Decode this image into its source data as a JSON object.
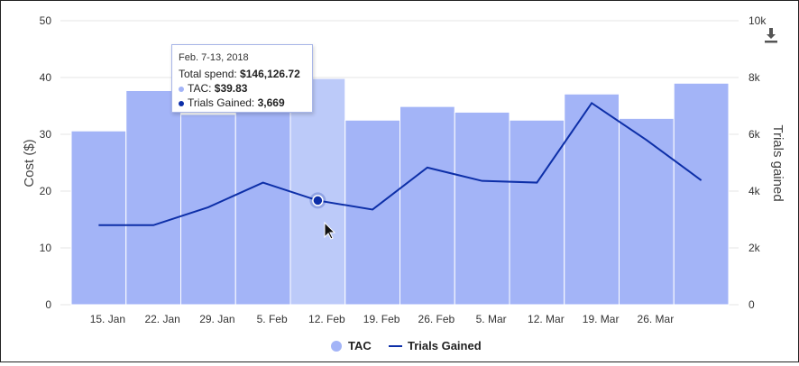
{
  "chart_data": {
    "type": "bar",
    "categories": [
      "15. Jan",
      "22. Jan",
      "29. Jan",
      "5. Feb",
      "12. Feb",
      "19. Feb",
      "26. Feb",
      "5. Mar",
      "12. Mar",
      "19. Mar",
      "26. Mar",
      ""
    ],
    "series": [
      {
        "name": "TAC",
        "type": "bar",
        "axis": "left",
        "color": "#a3b4f7",
        "highlight_color": "#bccaf9",
        "values": [
          30.6,
          37.7,
          33.5,
          34.5,
          39.83,
          32.5,
          34.9,
          33.9,
          32.5,
          37.1,
          32.8,
          39.0
        ]
      },
      {
        "name": "Trials Gained",
        "type": "line",
        "axis": "right",
        "color": "#0d2fa8",
        "values": [
          2800,
          2800,
          3430,
          4300,
          3669,
          3350,
          4830,
          4360,
          4300,
          7100,
          5800,
          4380
        ]
      }
    ],
    "x_tick_labels": [
      "15. Jan",
      "22. Jan",
      "29. Jan",
      "5. Feb",
      "12. Feb",
      "19. Feb",
      "26. Feb",
      "5. Mar",
      "12. Mar",
      "19. Mar",
      "26. Mar"
    ],
    "ylabel": "Cost ($)",
    "ylim": [
      0,
      50
    ],
    "yticks": [
      "0",
      "10",
      "20",
      "30",
      "40",
      "50"
    ],
    "y2label": "Trials gained",
    "y2lim": [
      0,
      10000
    ],
    "y2ticks": [
      "0",
      "2k",
      "4k",
      "6k",
      "8k",
      "10k"
    ],
    "highlight_index": 4,
    "grid": "horizontal",
    "legend_position": "bottom-center",
    "legend": [
      {
        "label": "TAC",
        "marker": "circle",
        "color": "#a3b4f7"
      },
      {
        "label": "Trials Gained",
        "marker": "line",
        "color": "#0d2fa8"
      }
    ]
  },
  "tooltip": {
    "date": "Feb. 7-13, 2018",
    "spend_label": "Total spend: ",
    "spend_value": "$146,126.72",
    "tac_label": "TAC: ",
    "tac_value": "$39.83",
    "tac_dot_color": "#a3b4f7",
    "trials_label": "Trials Gained: ",
    "trials_value": "3,669",
    "trials_dot_color": "#0d2fa8"
  },
  "toolbar": {
    "download_icon": "download-icon"
  }
}
